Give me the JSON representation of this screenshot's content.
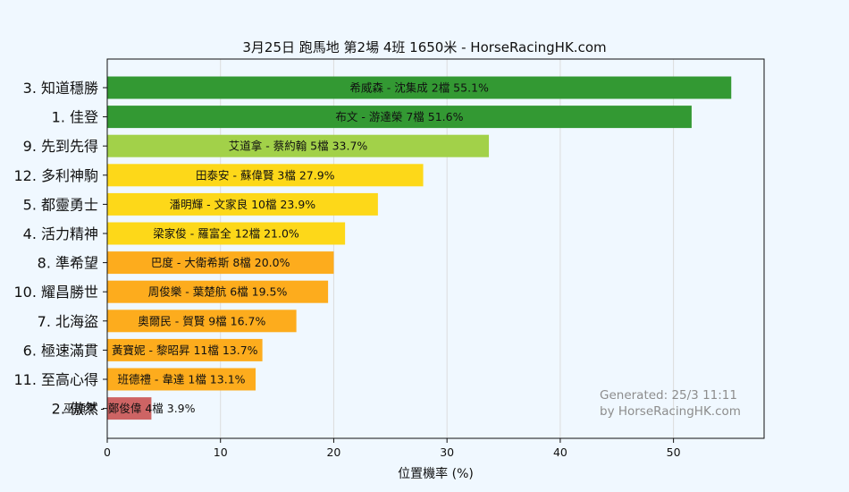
{
  "chart_data": {
    "type": "bar",
    "orientation": "horizontal",
    "title": "3月25日  跑馬地  第2場  4班  1650米 - HorseRacingHK.com",
    "xlabel": "位置機率 (%)",
    "ylabel": "",
    "xlim": [
      0,
      58
    ],
    "xticks": [
      0,
      10,
      20,
      30,
      40,
      50
    ],
    "grid": "vertical",
    "categories": [
      "3. 知道穩勝",
      "1. 佳登",
      "9. 先到先得",
      "12. 多利神駒",
      "5. 都靈勇士",
      "4. 活力精神",
      "8. 準希望",
      "10. 耀昌勝世",
      "7. 北海盜",
      "6. 極速滿貫",
      "11. 至高心得",
      "2. 傲然"
    ],
    "values": [
      55.1,
      51.6,
      33.7,
      27.9,
      23.9,
      21.0,
      20.0,
      19.5,
      16.7,
      13.7,
      13.1,
      3.9
    ],
    "bar_labels": [
      "希威森 - 沈集成 2檔  55.1%",
      "布文 - 游達榮 7檔  51.6%",
      "艾道拿 - 蔡約翰 5檔  33.7%",
      "田泰安 - 蘇偉賢 3檔  27.9%",
      "潘明輝 - 文家良 10檔  23.9%",
      "梁家俊 - 羅富全 12檔  21.0%",
      "巴度 - 大衛希斯 8檔  20.0%",
      "周俊樂 - 葉楚航 6檔  19.5%",
      "奧爾民 - 賀賢 9檔  16.7%",
      "黃寶妮 - 黎昭昇 11檔  13.7%",
      "班德禮 - 韋達 1檔  13.1%",
      "巫顯東 - 鄭俊偉 4檔  3.9%"
    ],
    "colors": [
      "#339933",
      "#339933",
      "#a2d149",
      "#fdd819",
      "#fdd819",
      "#fdd819",
      "#fdac1d",
      "#fdac1d",
      "#fdac1d",
      "#fdac1d",
      "#fdac1d",
      "#cd6464"
    ]
  },
  "watermark": {
    "line1": "Generated: 25/3 11:11",
    "line2": "by HorseRacingHK.com"
  }
}
